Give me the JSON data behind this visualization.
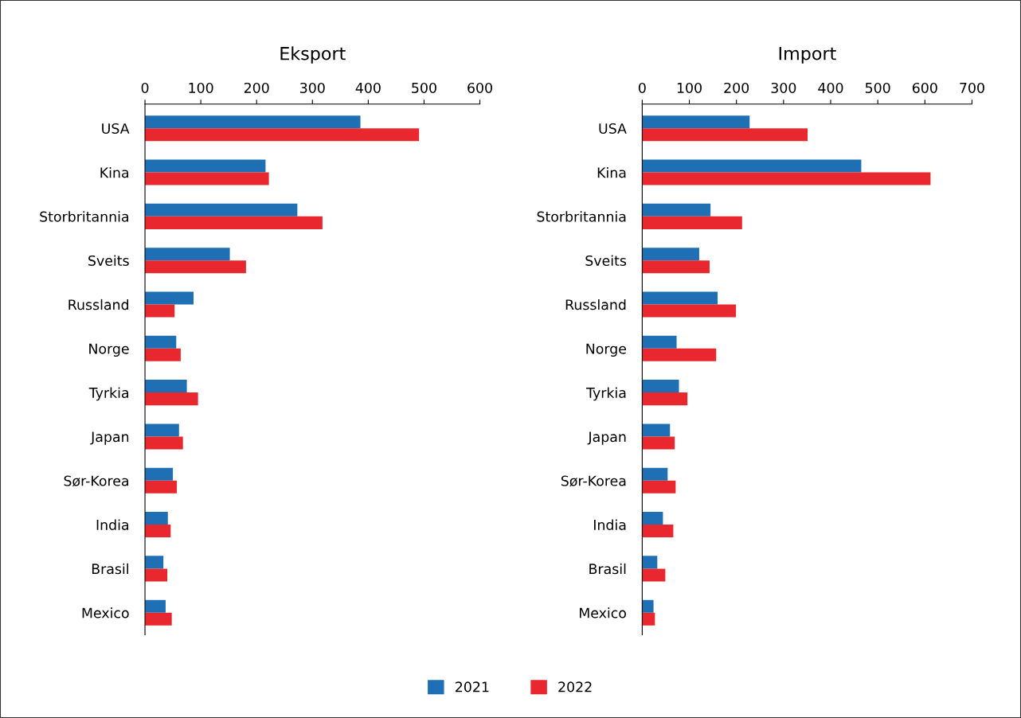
{
  "chart_data": [
    {
      "type": "bar",
      "orientation": "horizontal",
      "title": "Eksport",
      "categories": [
        "USA",
        "Kina",
        "Storbritannia",
        "Sveits",
        "Russland",
        "Norge",
        "Tyrkia",
        "Japan",
        "Sør-Korea",
        "India",
        "Brasil",
        "Mexico"
      ],
      "series": [
        {
          "name": "2021",
          "color": "#1f6fb4",
          "values": [
            386,
            216,
            273,
            152,
            87,
            56,
            75,
            61,
            50,
            41,
            33,
            37
          ]
        },
        {
          "name": "2022",
          "color": "#e8282e",
          "values": [
            491,
            222,
            318,
            181,
            53,
            64,
            95,
            68,
            57,
            46,
            40,
            48
          ]
        }
      ],
      "xlim": [
        0,
        600
      ],
      "xticks": [
        0,
        100,
        200,
        300,
        400,
        500,
        600
      ],
      "grid": false,
      "legend": "bottom"
    },
    {
      "type": "bar",
      "orientation": "horizontal",
      "title": "Import",
      "categories": [
        "USA",
        "Kina",
        "Storbritannia",
        "Sveits",
        "Russland",
        "Norge",
        "Tyrkia",
        "Japan",
        "Sør-Korea",
        "India",
        "Brasil",
        "Mexico"
      ],
      "series": [
        {
          "name": "2021",
          "color": "#1f6fb4",
          "values": [
            228,
            465,
            145,
            121,
            160,
            73,
            78,
            59,
            54,
            44,
            32,
            24
          ]
        },
        {
          "name": "2022",
          "color": "#e8282e",
          "values": [
            351,
            612,
            212,
            143,
            199,
            157,
            96,
            69,
            71,
            66,
            49,
            27
          ]
        }
      ],
      "xlim": [
        0,
        700
      ],
      "xticks": [
        0,
        100,
        200,
        300,
        400,
        500,
        600,
        700
      ],
      "grid": false,
      "legend": "bottom"
    }
  ]
}
